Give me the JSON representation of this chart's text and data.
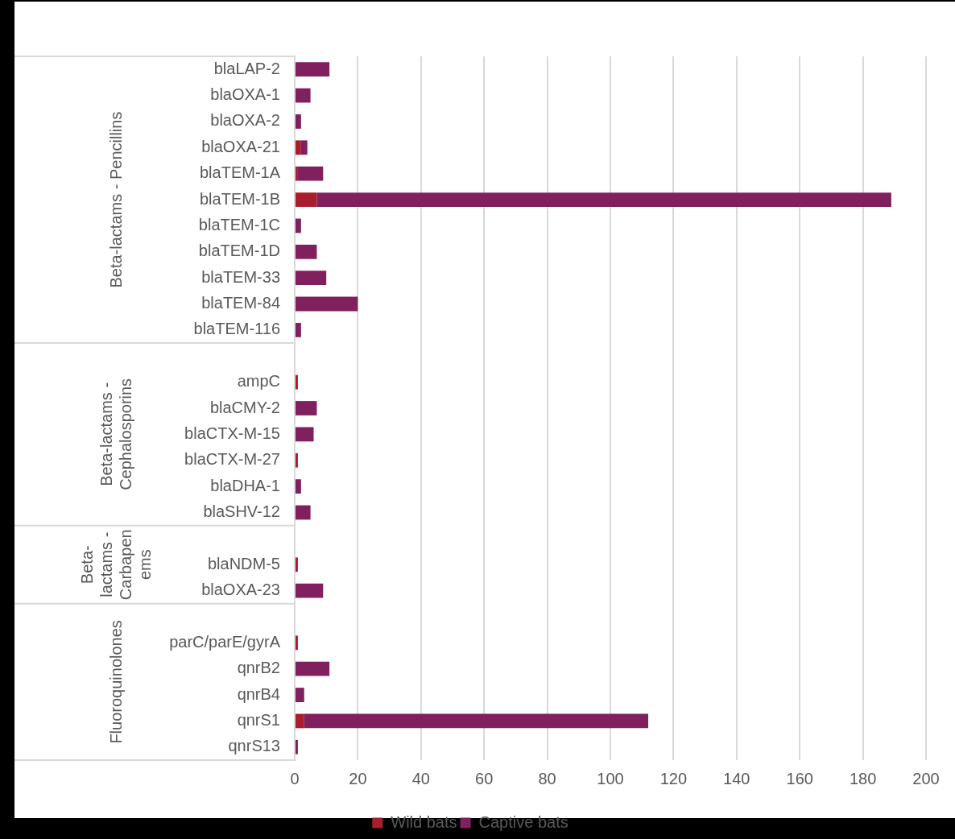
{
  "chart_data": {
    "type": "bar",
    "orientation": "horizontal",
    "stacked": true,
    "categories": [
      "blaLAP-2",
      "blaOXA-1",
      "blaOXA-2",
      "blaOXA-21",
      "blaTEM-1A",
      "blaTEM-1B",
      "blaTEM-1C",
      "blaTEM-1D",
      "blaTEM-33",
      "blaTEM-84",
      "blaTEM-116",
      null,
      "ampC",
      "blaCMY-2",
      "blaCTX-M-15",
      "blaCTX-M-27",
      "blaDHA-1",
      "blaSHV-12",
      null,
      "blaNDM-5",
      "blaOXA-23",
      null,
      "parC/parE/gyrA",
      "qnrB2",
      "qnrB4",
      "qnrS1",
      "qnrS13"
    ],
    "series": [
      {
        "name": "Wild bats",
        "color": "#a91d2f",
        "values": [
          0,
          0,
          0,
          2,
          1,
          7,
          0,
          0,
          0,
          0,
          0,
          null,
          1,
          0,
          0,
          1,
          0,
          0,
          null,
          1,
          0,
          null,
          1,
          0,
          0,
          3,
          0
        ]
      },
      {
        "name": "Captive bats",
        "color": "#80205e",
        "values": [
          11,
          5,
          2,
          2,
          8,
          182,
          2,
          7,
          10,
          20,
          2,
          null,
          0,
          7,
          6,
          0,
          2,
          5,
          null,
          0,
          9,
          null,
          0,
          11,
          3,
          109,
          1
        ]
      }
    ],
    "xlim": [
      0,
      200
    ],
    "xticks": [
      0,
      20,
      40,
      60,
      80,
      100,
      120,
      140,
      160,
      180,
      200
    ],
    "grid": "x",
    "legend": "bottom",
    "annotations": [
      "Beta-lactams - Pencillins",
      "Beta-lactams - Cephalosporins",
      "Beta-lactams - Carbapenems",
      "Fluoroquinolones"
    ]
  }
}
